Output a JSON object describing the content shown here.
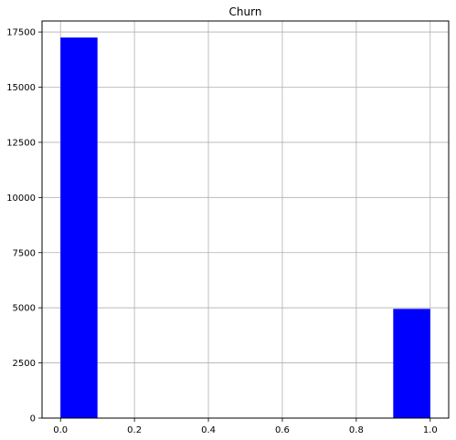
{
  "chart_data": {
    "type": "bar",
    "title": "Churn",
    "xlabel": "",
    "ylabel": "",
    "bar_color": "#0000ff",
    "grid": true,
    "xlim": [
      -0.05,
      1.05
    ],
    "ylim": [
      0,
      18000
    ],
    "xticks": [
      0.0,
      0.2,
      0.4,
      0.6,
      0.8,
      1.0
    ],
    "xtick_labels": [
      "0.0",
      "0.2",
      "0.4",
      "0.6",
      "0.8",
      "1.0"
    ],
    "yticks": [
      0,
      2500,
      5000,
      7500,
      10000,
      12500,
      15000,
      17500
    ],
    "ytick_labels": [
      "0",
      "2500",
      "5000",
      "7500",
      "10000",
      "12500",
      "15000",
      "17500"
    ],
    "bins": [
      {
        "x0": 0.0,
        "x1": 0.1,
        "count": 17250
      },
      {
        "x0": 0.9,
        "x1": 1.0,
        "count": 4950
      }
    ]
  }
}
